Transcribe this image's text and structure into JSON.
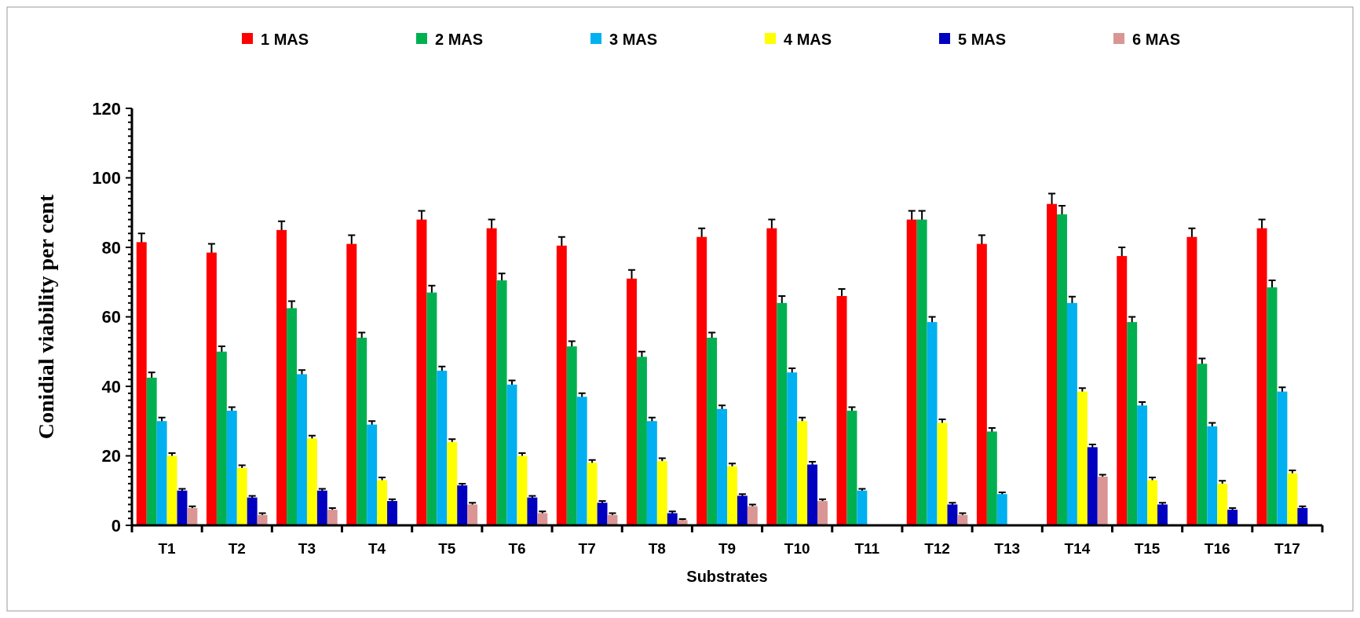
{
  "chart_data": {
    "type": "bar",
    "xlabel": "Substrates",
    "ylabel": "Conidial viability per cent",
    "categories": [
      "T1",
      "T2",
      "T3",
      "T4",
      "T5",
      "T6",
      "T7",
      "T8",
      "T9",
      "T10",
      "T11",
      "T12",
      "T13",
      "T14",
      "T15",
      "T16",
      "T17"
    ],
    "series": [
      {
        "name": "1 MAS",
        "color": "#ff0000",
        "values": [
          81.5,
          78.5,
          85,
          81,
          88,
          85.5,
          80.5,
          71,
          83,
          85.5,
          66,
          88,
          81,
          92.5,
          77.5,
          83,
          85.5
        ],
        "errors": [
          2.5,
          2.5,
          2.5,
          2.5,
          2.5,
          2.5,
          2.5,
          2.5,
          2.5,
          2.5,
          2,
          2.5,
          2.5,
          3,
          2.5,
          2.5,
          2.5
        ]
      },
      {
        "name": "2 MAS",
        "color": "#00b050",
        "values": [
          42.5,
          50,
          62.5,
          54,
          67,
          70.5,
          51.5,
          48.5,
          54,
          64,
          33,
          88,
          27,
          89.5,
          58.5,
          46.5,
          68.5
        ],
        "errors": [
          1.5,
          1.5,
          2,
          1.5,
          2,
          2,
          1.5,
          1.5,
          1.5,
          2,
          1,
          2.5,
          1,
          2.5,
          1.5,
          1.5,
          2
        ]
      },
      {
        "name": "3 MAS",
        "color": "#00b0f0",
        "values": [
          30,
          33,
          43.5,
          29,
          44.5,
          40.5,
          37,
          30,
          33.5,
          44,
          10,
          58.5,
          9,
          64,
          34.5,
          28.5,
          38.5
        ],
        "errors": [
          1,
          1,
          1.2,
          1,
          1.2,
          1.2,
          1,
          1,
          1,
          1.2,
          0.5,
          1.5,
          0.5,
          1.8,
          1,
          1,
          1.2
        ]
      },
      {
        "name": "4 MAS",
        "color": "#ffff00",
        "values": [
          20,
          16.5,
          25,
          13,
          24,
          20,
          18,
          18.5,
          17,
          30,
          0,
          29.5,
          0,
          38.5,
          13,
          12,
          15
        ],
        "errors": [
          0.8,
          0.8,
          0.8,
          0.8,
          0.8,
          0.8,
          0.8,
          0.8,
          0.8,
          1,
          0,
          1,
          0,
          1,
          0.8,
          0.8,
          0.8
        ]
      },
      {
        "name": "5 MAS",
        "color": "#0000c0",
        "values": [
          10,
          8,
          10,
          7,
          11.5,
          8,
          6.5,
          3.5,
          8.5,
          17.5,
          0,
          6,
          0,
          22.5,
          6,
          4.5,
          5
        ],
        "errors": [
          0.5,
          0.5,
          0.5,
          0.5,
          0.5,
          0.5,
          0.5,
          0.5,
          0.5,
          0.8,
          0,
          0.5,
          0,
          0.8,
          0.5,
          0.5,
          0.5
        ]
      },
      {
        "name": "6 MAS",
        "color": "#da9694",
        "values": [
          5,
          3,
          4.5,
          0,
          6,
          3.5,
          3,
          1.5,
          5.5,
          7,
          0,
          3,
          0,
          14,
          0,
          0,
          0
        ],
        "errors": [
          0.5,
          0.5,
          0.5,
          0,
          0.5,
          0.5,
          0.5,
          0.3,
          0.5,
          0.5,
          0,
          0.5,
          0,
          0.6,
          0,
          0,
          0
        ]
      }
    ],
    "ylim": [
      0,
      120
    ],
    "yticks": [
      0,
      {
        "value": 2,
        "label": null
      },
      {
        "value": 4,
        "label": null
      },
      {
        "value": 6,
        "label": null
      },
      {
        "value": 8,
        "label": null
      },
      {
        "value": 10,
        "label": null
      },
      {
        "value": 12,
        "label": null
      },
      {
        "value": 14,
        "label": null
      },
      {
        "value": 16,
        "label": null
      },
      {
        "value": 18,
        "label": null
      },
      20,
      {
        "value": 22,
        "label": null
      },
      {
        "value": 24,
        "label": null
      },
      {
        "value": 26,
        "label": null
      },
      {
        "value": 28,
        "label": null
      },
      {
        "value": 30,
        "label": null
      },
      {
        "value": 32,
        "label": null
      },
      {
        "value": 34,
        "label": null
      },
      {
        "value": 36,
        "label": null
      },
      {
        "value": 38,
        "label": null
      },
      40,
      {
        "value": 42,
        "label": null
      },
      {
        "value": 44,
        "label": null
      },
      {
        "value": 46,
        "label": null
      },
      {
        "value": 48,
        "label": null
      },
      {
        "value": 50,
        "label": null
      },
      {
        "value": 52,
        "label": null
      },
      {
        "value": 54,
        "label": null
      },
      {
        "value": 56,
        "label": null
      },
      {
        "value": 58,
        "label": null
      },
      60,
      {
        "value": 62,
        "label": null
      },
      {
        "value": 64,
        "label": null
      },
      {
        "value": 66,
        "label": null
      },
      {
        "value": 68,
        "label": null
      },
      {
        "value": 70,
        "label": null
      },
      {
        "value": 72,
        "label": null
      },
      {
        "value": 74,
        "label": null
      },
      {
        "value": 76,
        "label": null
      },
      {
        "value": 78,
        "label": null
      },
      80,
      {
        "value": 82,
        "label": null
      },
      {
        "value": 84,
        "label": null
      },
      {
        "value": 86,
        "label": null
      },
      {
        "value": 88,
        "label": null
      },
      {
        "value": 90,
        "label": null
      },
      {
        "value": 92,
        "label": null
      },
      {
        "value": 94,
        "label": null
      },
      {
        "value": 96,
        "label": null
      },
      {
        "value": 98,
        "label": null
      },
      100,
      {
        "value": 102,
        "label": null
      },
      {
        "value": 104,
        "label": null
      },
      {
        "value": 106,
        "label": null
      },
      {
        "value": 108,
        "label": null
      },
      {
        "value": 110,
        "label": null
      },
      {
        "value": 112,
        "label": null
      },
      {
        "value": 114,
        "label": null
      },
      {
        "value": 116,
        "label": null
      },
      {
        "value": 118,
        "label": null
      },
      120
    ],
    "grid": false,
    "legend": "top"
  }
}
